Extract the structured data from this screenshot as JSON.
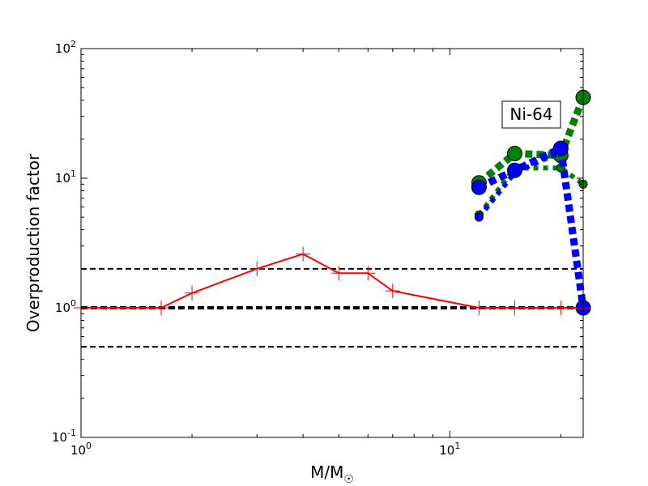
{
  "chart_data": {
    "type": "line",
    "xscale": "log",
    "yscale": "log",
    "xlim": [
      1,
      23
    ],
    "ylim": [
      0.1,
      100
    ],
    "xlabel": "M/M",
    "xlabel_sub": "☉",
    "ylabel": "Overproduction factor",
    "x_ticks": [
      {
        "value": 1,
        "base": "10",
        "exp": "0"
      },
      {
        "value": 10,
        "base": "10",
        "exp": "1"
      }
    ],
    "y_ticks": [
      {
        "value": 0.1,
        "base": "10",
        "exp": "-1"
      },
      {
        "value": 1,
        "base": "10",
        "exp": "0"
      },
      {
        "value": 10,
        "base": "10",
        "exp": "1"
      },
      {
        "value": 100,
        "base": "10",
        "exp": "2"
      }
    ],
    "annotation": "Ni-64",
    "reference_lines": [
      {
        "y": 2,
        "style": "dashed",
        "color": "#000000"
      },
      {
        "y": 1,
        "style": "dashed-thick",
        "color": "#000000"
      },
      {
        "y": 0.5,
        "style": "dashed",
        "color": "#000000"
      }
    ],
    "series": [
      {
        "style": "solid-plus",
        "color": "#ff0000",
        "x": [
          1,
          1.65,
          2,
          3,
          4,
          5,
          6,
          7,
          12,
          15,
          20,
          23
        ],
        "y": [
          1.0,
          1.0,
          1.3,
          2.0,
          2.6,
          1.85,
          1.85,
          1.35,
          1.0,
          1.0,
          1.0,
          1.0
        ]
      },
      {
        "style": "thick-dotted",
        "color": "#008000",
        "x": [
          12,
          15,
          20,
          23
        ],
        "y": [
          5.2,
          12.0,
          12.0,
          9.0
        ],
        "marker_size": "small"
      },
      {
        "style": "thick-dashed",
        "color": "#008000",
        "x": [
          12,
          15,
          20,
          23
        ],
        "y": [
          9.2,
          15.5,
          15.0,
          42.0
        ],
        "marker_size": "large"
      },
      {
        "style": "thick-dotted",
        "color": "#0000ff",
        "x": [
          12,
          15,
          20
        ],
        "y": [
          5.0,
          11.0,
          16.0
        ],
        "marker_size": "small"
      },
      {
        "style": "thick-dashed",
        "color": "#0000ff",
        "x": [
          12,
          15,
          20,
          23
        ],
        "y": [
          8.5,
          11.5,
          17.0,
          1.0
        ],
        "marker_size": "large"
      }
    ]
  }
}
